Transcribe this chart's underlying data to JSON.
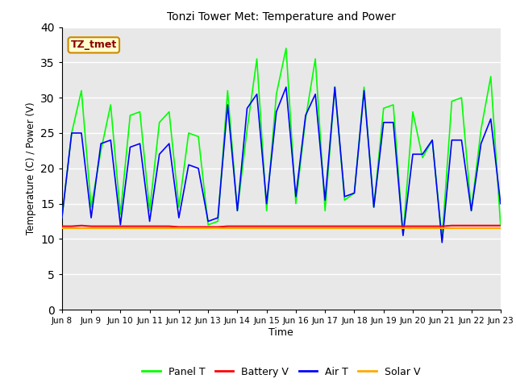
{
  "title": "Tonzi Tower Met: Temperature and Power",
  "xlabel": "Time",
  "ylabel": "Temperature (C) / Power (V)",
  "ylim": [
    0,
    40
  ],
  "yticks": [
    0,
    5,
    10,
    15,
    20,
    25,
    30,
    35,
    40
  ],
  "xtick_labels": [
    "Jun 8",
    "Jun 9",
    "Jun 10",
    "Jun 11",
    "Jun 12",
    "Jun 13",
    "Jun 14",
    "Jun 15",
    "Jun 16",
    "Jun 17",
    "Jun 18",
    "Jun 19",
    "Jun 20",
    "Jun 21",
    "Jun 22",
    "Jun 23"
  ],
  "annotation_text": "TZ_tmet",
  "background_color": "#e8e8e8",
  "panel_t_color": "#00ff00",
  "battery_v_color": "#ff0000",
  "air_t_color": "#0000ff",
  "solar_v_color": "#ffaa00",
  "legend_labels": [
    "Panel T",
    "Battery V",
    "Air T",
    "Solar V"
  ],
  "panel_t": [
    13.0,
    25.0,
    31.0,
    14.5,
    22.5,
    29.0,
    13.5,
    27.5,
    28.0,
    14.0,
    26.5,
    28.0,
    14.5,
    25.0,
    24.5,
    12.0,
    12.5,
    31.0,
    14.0,
    25.5,
    35.5,
    14.0,
    30.5,
    37.0,
    15.0,
    27.0,
    35.5,
    14.0,
    31.5,
    15.5,
    16.5,
    31.5,
    14.5,
    28.5,
    29.0,
    10.5,
    28.0,
    21.5,
    24.0,
    10.0,
    29.5,
    30.0,
    14.0,
    25.5,
    33.0,
    12.0
  ],
  "battery_v": [
    11.8,
    11.8,
    11.9,
    11.8,
    11.8,
    11.8,
    11.8,
    11.8,
    11.8,
    11.8,
    11.8,
    11.8,
    11.7,
    11.7,
    11.7,
    11.7,
    11.7,
    11.8,
    11.8,
    11.8,
    11.8,
    11.8,
    11.8,
    11.8,
    11.8,
    11.8,
    11.8,
    11.8,
    11.8,
    11.8,
    11.8,
    11.8,
    11.8,
    11.8,
    11.8,
    11.8,
    11.8,
    11.8,
    11.8,
    11.8,
    11.9,
    11.9,
    11.9,
    11.9,
    11.9,
    11.9
  ],
  "air_t": [
    13.0,
    25.0,
    25.0,
    13.0,
    23.5,
    24.0,
    12.0,
    23.0,
    23.5,
    12.5,
    22.0,
    23.5,
    13.0,
    20.5,
    20.0,
    12.5,
    13.0,
    29.0,
    14.0,
    28.5,
    30.5,
    15.0,
    28.0,
    31.5,
    16.0,
    27.5,
    30.5,
    15.5,
    31.5,
    16.0,
    16.5,
    31.0,
    14.5,
    26.5,
    26.5,
    10.5,
    22.0,
    22.0,
    24.0,
    9.5,
    24.0,
    24.0,
    14.0,
    23.5,
    27.0,
    15.0
  ],
  "solar_v": [
    11.5,
    11.5,
    11.5,
    11.5,
    11.5,
    11.5,
    11.5,
    11.5,
    11.5,
    11.5,
    11.5,
    11.5,
    11.5,
    11.5,
    11.5,
    11.5,
    11.5,
    11.5,
    11.5,
    11.5,
    11.5,
    11.5,
    11.5,
    11.5,
    11.5,
    11.5,
    11.5,
    11.5,
    11.5,
    11.5,
    11.5,
    11.5,
    11.5,
    11.5,
    11.5,
    11.5,
    11.5,
    11.5,
    11.5,
    11.5,
    11.5,
    11.5,
    11.5,
    11.5,
    11.5,
    11.5
  ]
}
